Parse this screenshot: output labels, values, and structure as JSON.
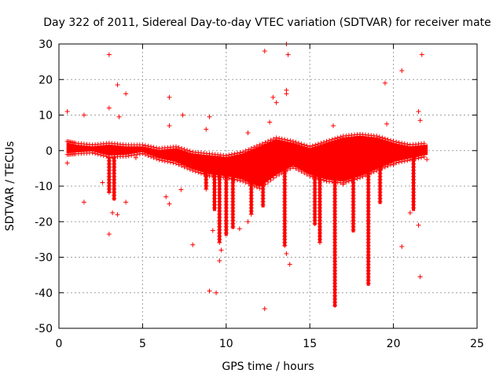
{
  "chart_data": {
    "type": "scatter",
    "title": "Day 322 of 2011, Sidereal Day-to-day VTEC variation (SDTVAR) for receiver mate",
    "xlabel": "GPS time / hours",
    "ylabel": "SDTVAR / TECUs",
    "xlim": [
      0,
      25
    ],
    "ylim": [
      -50,
      30
    ],
    "xticks": [
      0,
      5,
      10,
      15,
      20,
      25
    ],
    "yticks": [
      30,
      20,
      10,
      0,
      -10,
      -20,
      -30,
      -40,
      -50
    ],
    "grid": true,
    "marker": "+",
    "series": [
      {
        "name": "SDTVAR",
        "color": "#ff0000",
        "outliers": [
          [
            3.0,
            27
          ],
          [
            12.3,
            28
          ],
          [
            13.7,
            27
          ],
          [
            13.6,
            30
          ],
          [
            21.7,
            27
          ],
          [
            20.5,
            22.5
          ],
          [
            19.5,
            19
          ],
          [
            3.5,
            18.5
          ],
          [
            4.0,
            16
          ],
          [
            6.6,
            15
          ],
          [
            13.6,
            16
          ],
          [
            13.6,
            17
          ],
          [
            12.8,
            15
          ],
          [
            13.0,
            13.5
          ],
          [
            3.0,
            12
          ],
          [
            0.5,
            11
          ],
          [
            1.5,
            10
          ],
          [
            3.6,
            9.5
          ],
          [
            7.4,
            10
          ],
          [
            9.0,
            9.5
          ],
          [
            21.5,
            11
          ],
          [
            21.6,
            8.5
          ],
          [
            19.6,
            7.5
          ],
          [
            16.4,
            7
          ],
          [
            12.6,
            8
          ],
          [
            11.3,
            5
          ],
          [
            8.8,
            6
          ],
          [
            6.6,
            7
          ],
          [
            1.5,
            -14.5
          ],
          [
            4.0,
            -14.5
          ],
          [
            3.2,
            -17.5
          ],
          [
            3.5,
            -18
          ],
          [
            3.0,
            -23.5
          ],
          [
            8.0,
            -26.5
          ],
          [
            9.0,
            -39.5
          ],
          [
            9.4,
            -40
          ],
          [
            12.3,
            -44.5
          ],
          [
            13.8,
            -32
          ],
          [
            13.6,
            -29
          ],
          [
            9.7,
            -28
          ],
          [
            9.6,
            -31
          ],
          [
            21.5,
            -21
          ],
          [
            20.5,
            -27
          ],
          [
            21.6,
            -35.5
          ],
          [
            21.0,
            -17.5
          ],
          [
            9.2,
            -22.5
          ],
          [
            7.3,
            -11
          ],
          [
            6.4,
            -13
          ],
          [
            6.6,
            -15
          ],
          [
            2.6,
            -9
          ],
          [
            0.5,
            -3.5
          ],
          [
            22.0,
            -2.5
          ],
          [
            20.0,
            -4
          ],
          [
            17.0,
            -9.5
          ],
          [
            4.6,
            -2
          ],
          [
            10.8,
            -22
          ],
          [
            11.3,
            -20
          ]
        ],
        "band": [
          [
            0.5,
            -0.5,
            2.0
          ],
          [
            1.0,
            -0.3,
            1.5
          ],
          [
            2.0,
            0.0,
            1.0
          ],
          [
            3.0,
            -1.2,
            1.5
          ],
          [
            4.0,
            -1.0,
            1.0
          ],
          [
            5.0,
            -0.2,
            1.0
          ],
          [
            6.0,
            -2.0,
            0.0
          ],
          [
            7.0,
            -3.0,
            0.5
          ],
          [
            8.0,
            -5.0,
            -1.0
          ],
          [
            9.0,
            -6.5,
            -1.5
          ],
          [
            10.0,
            -7.0,
            -2.0
          ],
          [
            11.0,
            -8.0,
            -1.0
          ],
          [
            12.0,
            -10.0,
            1.0
          ],
          [
            13.0,
            -6.5,
            3.0
          ],
          [
            14.0,
            -4.0,
            2.0
          ],
          [
            15.0,
            -6.5,
            0.5
          ],
          [
            16.0,
            -8.0,
            2.0
          ],
          [
            17.0,
            -8.5,
            3.5
          ],
          [
            18.0,
            -7.0,
            4.0
          ],
          [
            19.0,
            -5.0,
            3.5
          ],
          [
            20.0,
            -3.0,
            2.0
          ],
          [
            21.0,
            -2.0,
            1.0
          ],
          [
            22.0,
            -1.0,
            1.5
          ]
        ],
        "spikes": [
          [
            3.0,
            -12
          ],
          [
            3.3,
            -14
          ],
          [
            8.8,
            -11
          ],
          [
            9.3,
            -17
          ],
          [
            9.6,
            -26
          ],
          [
            10.0,
            -24
          ],
          [
            10.4,
            -22
          ],
          [
            11.5,
            -18
          ],
          [
            12.2,
            -16
          ],
          [
            13.5,
            -27
          ],
          [
            15.3,
            -21
          ],
          [
            15.6,
            -26
          ],
          [
            16.5,
            -44
          ],
          [
            17.6,
            -23
          ],
          [
            18.5,
            -38
          ],
          [
            19.2,
            -15
          ],
          [
            21.2,
            -17
          ]
        ]
      }
    ]
  }
}
